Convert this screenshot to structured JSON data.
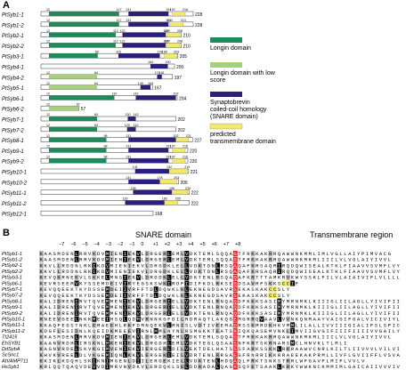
{
  "panelA": {
    "letter": "A",
    "domains": [
      {
        "name": "Longin domain",
        "color": "#1e8c5a",
        "label": "Longin domain"
      },
      {
        "name": "Longin low",
        "color": "#a6cf7e",
        "label": "Longin domain with low score"
      },
      {
        "name": "SNARE",
        "color": "#2b1f7a",
        "label": "Synaptobrevin coiled-coil homology (SNARE domain)"
      },
      {
        "name": "TM",
        "color": "#f2e86a",
        "label": "predicted transmembrane domain"
      }
    ],
    "proteins": [
      {
        "name": "PtSyb1-1",
        "len": 228,
        "longin": [
          12,
          117
        ],
        "snare": [
          131,
          191
        ],
        "tm": [
          197,
          216
        ],
        "low": false,
        "labels": [
          "12",
          "117",
          "131",
          "191",
          "197",
          "216"
        ]
      },
      {
        "name": "PtSyb1-2",
        "len": 228,
        "longin": [
          12,
          117
        ],
        "snare": [
          131,
          191
        ],
        "tm": [
          193,
          213
        ],
        "low": false,
        "labels": [
          "12",
          "117",
          "131",
          "191",
          "193",
          "213"
        ]
      },
      {
        "name": "PtSyb2-1",
        "len": 210,
        "longin": [
          12,
          112
        ],
        "snare": [
          122,
          187
        ],
        "tm": [
          189,
          208
        ],
        "low": false,
        "labels": [
          "12",
          "112",
          "122",
          "187",
          "189",
          "208"
        ]
      },
      {
        "name": "PtSyb2-2",
        "len": 210,
        "longin": [
          12,
          112
        ],
        "snare": [
          122,
          187
        ],
        "tm": [
          189,
          208
        ],
        "low": false,
        "labels": [
          "12",
          "112",
          "122",
          "187",
          "189",
          "208"
        ]
      },
      {
        "name": "PtSyb3-1",
        "len": 205,
        "longin": [
          12,
          85
        ],
        "snare": [
          116,
          178
        ],
        "tm": [
          185,
          203
        ],
        "low": false,
        "labels": [
          "85",
          "116",
          "178",
          "185",
          "203"
        ]
      },
      {
        "name": "PtSyb4-1",
        "len": 200,
        "longin": null,
        "snare": [
          164,
          190
        ],
        "tm": null,
        "low": false,
        "labels": [
          "164",
          "190"
        ]
      },
      {
        "name": "PtSyb4-2",
        "len": 197,
        "longin": [
          12,
          84
        ],
        "snare": [
          174,
          181
        ],
        "tm": null,
        "low": true,
        "labels": [
          "12",
          "84",
          "174",
          "181"
        ]
      },
      {
        "name": "PtSyb5-1",
        "len": 167,
        "longin": [
          12,
          84
        ],
        "snare": [
          149,
          164
        ],
        "tm": null,
        "low": true,
        "labels": [
          "12",
          "84",
          "149",
          "164"
        ]
      },
      {
        "name": "PtSyb6-1",
        "len": 204,
        "longin": [
          12,
          110
        ],
        "snare": [
          142,
          202
        ],
        "tm": null,
        "low": false,
        "labels": [
          "12",
          "110",
          "142",
          "202"
        ]
      },
      {
        "name": "PtSyb6-2",
        "len": 57,
        "longin": [
          12,
          57
        ],
        "snare": null,
        "tm": null,
        "low": true,
        "labels": [
          "12",
          "57"
        ]
      },
      {
        "name": "PtSyb7-1",
        "len": 202,
        "longin": [
          12,
          84
        ],
        "snare": [
          130,
          142
        ],
        "tm": null,
        "low": false,
        "labels": [
          "12",
          "84",
          "130",
          "142"
        ]
      },
      {
        "name": "PtSyb7-2",
        "len": 202,
        "longin": [
          12,
          84
        ],
        "snare": [
          129,
          142
        ],
        "tm": null,
        "low": false,
        "labels": [
          "12",
          "84",
          "129",
          "142"
        ]
      },
      {
        "name": "PtSyb8-1",
        "len": 227,
        "longin": [
          12,
          98
        ],
        "snare": [
          131,
          202
        ],
        "tm": [
          202,
          221
        ],
        "low": false,
        "labels": [
          "12",
          "98",
          "131",
          "202",
          "221"
        ]
      },
      {
        "name": "PtSyb9-1",
        "len": 220,
        "longin": [
          12,
          98
        ],
        "snare": [
          131,
          191
        ],
        "tm": [
          197,
          216
        ],
        "low": false,
        "labels": [
          "12",
          "98",
          "131",
          "191",
          "197",
          "216"
        ]
      },
      {
        "name": "PtSyb9-2",
        "len": 220,
        "longin": [
          12,
          98
        ],
        "snare": [
          131,
          191
        ],
        "tm": [
          197,
          216
        ],
        "low": false,
        "labels": [
          "12",
          "98",
          "131",
          "191",
          "197",
          "216"
        ]
      },
      {
        "name": "PtSyb10-1",
        "len": 221,
        "longin": null,
        "snare": [
          141,
          192
        ],
        "tm": [
          192,
          219
        ],
        "low": false,
        "labels": [
          "141",
          "192",
          "219"
        ]
      },
      {
        "name": "PtSyb10-2",
        "len": 206,
        "longin": null,
        "snare": [
          131,
          178
        ],
        "tm": [
          178,
          203
        ],
        "low": false,
        "labels": [
          "131",
          "178",
          "203"
        ]
      },
      {
        "name": "PtSyb11-1",
        "len": 222,
        "longin": null,
        "snare": [
          138,
          196
        ],
        "tm": [
          196,
          220
        ],
        "low": false,
        "labels": [
          "138",
          "196",
          "220"
        ]
      },
      {
        "name": "PtSyb11-2",
        "len": 222,
        "longin": null,
        "snare": [
          126,
          185
        ],
        "tm": [
          185,
          205
        ],
        "low": false,
        "labels": [
          "126",
          "185",
          "205"
        ]
      },
      {
        "name": "PtSyb12-1",
        "len": 168,
        "longin": null,
        "snare": null,
        "tm": null,
        "low": false,
        "labels": []
      }
    ]
  },
  "panelB": {
    "letter": "B",
    "snare_title": "SNARE domain",
    "tm_title": "Transmembrane region",
    "layers": [
      "−7",
      "−6",
      "−5",
      "−4",
      "−3",
      "−2",
      "−1",
      "0",
      "+1",
      "+2",
      "+3",
      "+4",
      "+5",
      "+6",
      "+7",
      "+8"
    ],
    "rows": [
      {
        "name": "PtSyb1-1",
        "seq": "KAASMDENLRRVKDVMIENIEKVLDRGERLEMLVDKTEMLSQQAGTFRKKAKRRQAWWNKMMLIMLVGLLAIYPIMVACG"
      },
      {
        "name": "PtSyb1-2",
        "seq": "KAASMDENLRRVKDVMIENIEKVLDRGERLEMLVDKTEMLSQQAGTFRKKAKRRQAWWNKMKMLIIILVLVGLAIYIVVL"
      },
      {
        "name": "PtSyb2-1",
        "seq": "KKVLLRDDNLRKIKDVMIENIEKVLDRGDKLELLVDKTDNLRSQAQAFKRSAQRIRQDQWISEALKTKLFIAAVVSVMFLVYLY"
      },
      {
        "name": "PtSyb2-2",
        "seq": "KKVLLRDDNLRKIKDVMIENIEKVLDRGDKLELLVDKTDNLRSQAQAFKRSAQRIRQDQWISEALKTKLFIAAVVSVMFLVYLY"
      },
      {
        "name": "PtSyb3-1",
        "seq": "KEVQKRNEKVLSKKELMNSIEKVLDRGDKLELLVDKTENLRSQAQAFKRTTTAMKRVKWYSSKLFILVLAIAIVIFLVLLLL"
      },
      {
        "name": "PtSyb6-1",
        "seq": "KEVRSEEMVKYSSEMDEIVIRYEGSKSWKIRDFIDIFKDLRKSEGDSAVRFSKKSCCIF"
      },
      {
        "name": "PtSyb7-1",
        "seq": "KEVQQEEKTKYDSSEMDEIIVRFFTDLDQWKLKLEKNEGDSAVRSEKASKAKCCSLY"
      },
      {
        "name": "PtSyb7-2",
        "seq": "KEVQQEEKTKYDSSEMDEIIVRFFTDLDQWKLKLEKNEGDSAVRSEKASKAKCCSLY"
      },
      {
        "name": "PtSyb8-1",
        "seq": "KALIDRENIRVTQVEMMENIEKVLDRGERIELLVDKTENLRNQAQDFKKKSASIMYMRNMKLKIIIGLIILAGLLYIVIFII"
      },
      {
        "name": "PtSyb9-1",
        "seq": "KALIDRENIRVTQVEMMENIEKVLDRGERIELLVDKTENLRNQAQDFKKKSASIMYMRNMKLKIIIGLIILAGLLYIVIFII"
      },
      {
        "name": "PtSyb9-2",
        "seq": "KALIDRENIRVTQVEMMENIEKVLDRGERIELLVDKTENLRNQAQDFKKKSASIMYMRNMKLKIIIGLIILAGLLYIVIFII"
      },
      {
        "name": "PtSyb10-1",
        "seq": "RNEEVGEELNKKMEEIHSQLQDMVRNNKGFDILRDRAQTLAKQGEMGRRQVAAVLVVNKQNMAAYVAIGIFGALVICIVIYLFL"
      },
      {
        "name": "PtSyb11-1",
        "seq": "KKAQFEGSTNKLEMAEEHLRKFDMNQEKVLMNISLVDTIVEEMADRSSKMRDKHKVMMLILALLIVVIIIGIALIFSLSPICYVKF"
      },
      {
        "name": "PtSyb11-2",
        "seq": "KDGFLESIDNLKQEIDKMEEEVIRNLMMLNYNLRSMGKKTEATSRIQKQASEMVNKLIMVIIGVGIFIIIFIIIIVVGAILYIIAIIV"
      },
      {
        "name": "Tt2415",
        "seq": "KKASMDENLRRVKDVMIENIEKVLDRGERLEMLVDKTEMLSQQAGTFRKKAKRRQAWWNKMKMLIIILVLVGLAIYIVVL"
      },
      {
        "name": "EhSYB1",
        "seq": "KAANVRDHLIRSKNLMKENIEKVLDRGDHLEMLVDKTEGLQSAASNFKRTSKRNARSMCLHNVKLTLMLI"
      },
      {
        "name": "DdSybA",
        "seq": "KAGNVRDELSKVKGIMVENIEKVIERGERLDILVEKTDELHATSSSFARKSSKKLRKRAAWVCNRLKILTLIIVVVLVILVIY"
      },
      {
        "name": "ScSnc1",
        "seq": "KHVKVREELDLVKGEMIQNLKKVLERGEKIEILVDRTENLRRGAEGFRNRRIKKRRAEEKAKPRMLLIVFLGVIIFFLVSVAN"
      },
      {
        "name": "AtVAMP711",
        "seq": "KKIKLKDQHLSKIKNIMGENLDIILERGEKIELLVDKTENLHDQAQLFRKTSNKSTRRLWFGAVFLMIFLVVLV"
      },
      {
        "name": "HsSyb1",
        "seq": "KRLQQTQAQVDEVVDIMRVNVDKVLERDQKLSELDDRADALQAGASQFETSAAKLKRKYWWKNCKMMIMLGAICAIIVVVIVIYFFT"
      }
    ]
  }
}
